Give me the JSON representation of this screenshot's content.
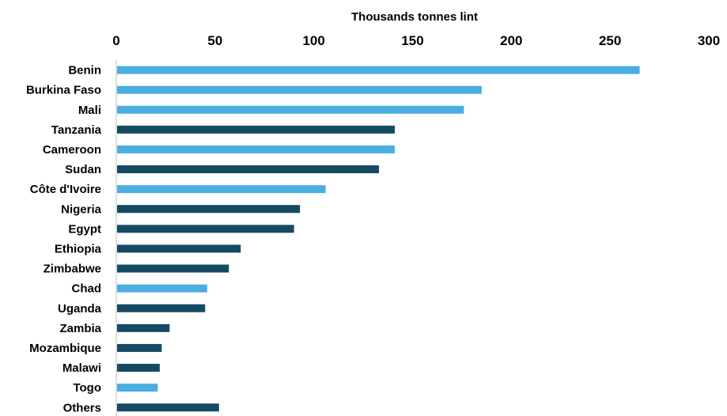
{
  "chart_data": {
    "type": "bar",
    "orientation": "horizontal",
    "xlabel": "Thousands tonnes  lint",
    "xlim": [
      0,
      300
    ],
    "xticks": [
      0,
      50,
      100,
      150,
      200,
      250,
      300
    ],
    "axis_position": "top",
    "grid": false,
    "categories": [
      "Benin",
      "Burkina Faso",
      "Mali",
      "Tanzania",
      "Cameroon",
      "Sudan",
      "Côte d'Ivoire",
      "Nigeria",
      "Egypt",
      "Ethiopia",
      "Zimbabwe",
      "Chad",
      "Uganda",
      "Zambia",
      "Mozambique",
      "Malawi",
      "Togo",
      "Others"
    ],
    "values": [
      265,
      185,
      176,
      141,
      141,
      133,
      106,
      93,
      90,
      63,
      57,
      46,
      45,
      27,
      23,
      22,
      21,
      52
    ],
    "bar_groups": [
      "light",
      "light",
      "light",
      "dark",
      "light",
      "dark",
      "light",
      "dark",
      "dark",
      "dark",
      "dark",
      "light",
      "dark",
      "dark",
      "dark",
      "dark",
      "light",
      "dark"
    ],
    "colors": {
      "light": "#4aaee0",
      "dark": "#154a63",
      "axis": "#bfbfbf"
    }
  }
}
